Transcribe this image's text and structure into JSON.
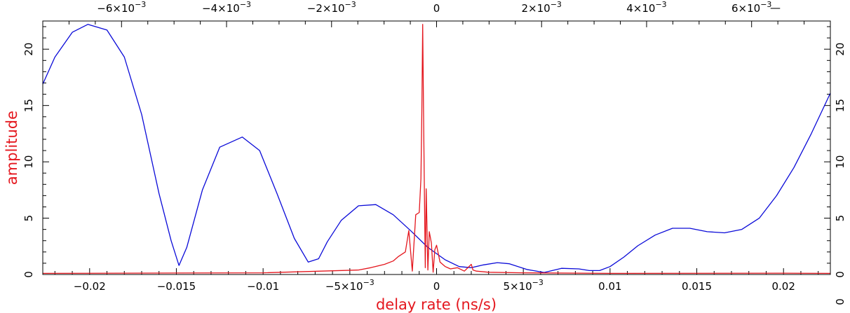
{
  "chart_data": {
    "type": "line",
    "title": "",
    "xlabel": "delay rate (ns/s)",
    "ylabel": "amplitude",
    "xlim": [
      -0.0227,
      0.0227
    ],
    "ylim": [
      0,
      22.5
    ],
    "top_xlim": [
      -0.0075,
      0.0075
    ],
    "colors": {
      "red": "#e4161d",
      "blue": "#0a0ad8",
      "axes": "#000000"
    },
    "bottom_ticks": [
      {
        "value": -0.02,
        "label": "−0.02"
      },
      {
        "value": -0.015,
        "label": "−0.015"
      },
      {
        "value": -0.01,
        "label": "−0.01"
      },
      {
        "value": -0.005,
        "label": "−5×10",
        "exp": "−3"
      },
      {
        "value": 0,
        "label": "0"
      },
      {
        "value": 0.005,
        "label": "5×10",
        "exp": "−3"
      },
      {
        "value": 0.01,
        "label": "0.01"
      },
      {
        "value": 0.015,
        "label": "0.015"
      },
      {
        "value": 0.02,
        "label": "0.02"
      }
    ],
    "top_ticks": [
      {
        "value": -0.006,
        "label": "−6×10",
        "exp": "−3"
      },
      {
        "value": -0.004,
        "label": "−4×10",
        "exp": "−3"
      },
      {
        "value": -0.002,
        "label": "−2×10",
        "exp": "−3"
      },
      {
        "value": 0,
        "label": "0"
      },
      {
        "value": 0.002,
        "label": "2×10",
        "exp": "−3"
      },
      {
        "value": 0.004,
        "label": "4×10",
        "exp": "−3"
      },
      {
        "value": 0.006,
        "label": "6×10",
        "exp": "−3"
      }
    ],
    "y_ticks": [
      {
        "value": 0,
        "label": "0"
      },
      {
        "value": 5,
        "label": "5"
      },
      {
        "value": 10,
        "label": "10"
      },
      {
        "value": 15,
        "label": "15"
      },
      {
        "value": 20,
        "label": "20"
      }
    ],
    "series": [
      {
        "color": "#0a0ad8",
        "x": [
          -0.0227,
          -0.022,
          -0.021,
          -0.0201,
          -0.019,
          -0.018,
          -0.017,
          -0.016,
          -0.0153,
          -0.01485,
          -0.0144,
          -0.0135,
          -0.0125,
          -0.0112,
          -0.0102,
          -0.0092,
          -0.0082,
          -0.0074,
          -0.0068,
          -0.0063,
          -0.0055,
          -0.0045,
          -0.0035,
          -0.0025,
          -0.0015,
          -0.0005,
          0.0005,
          0.0013,
          0.002,
          0.0027,
          0.0035,
          0.0042,
          0.0052,
          0.0062,
          0.0072,
          0.0082,
          0.0088,
          0.0094,
          0.01,
          0.0108,
          0.0116,
          0.0126,
          0.0136,
          0.0146,
          0.0156,
          0.0166,
          0.0176,
          0.0186,
          0.0196,
          0.0206,
          0.0216,
          0.0227
        ],
        "y": [
          16.9,
          19.3,
          21.5,
          22.2,
          21.7,
          19.3,
          14.2,
          7.2,
          3.0,
          0.8,
          2.4,
          7.5,
          11.3,
          12.2,
          11.0,
          7.2,
          3.2,
          1.1,
          1.4,
          2.9,
          4.8,
          6.1,
          6.2,
          5.3,
          3.9,
          2.4,
          1.3,
          0.7,
          0.6,
          0.85,
          1.05,
          0.95,
          0.45,
          0.18,
          0.55,
          0.5,
          0.35,
          0.35,
          0.7,
          1.55,
          2.55,
          3.5,
          4.1,
          4.1,
          3.8,
          3.7,
          4.0,
          5.0,
          7.0,
          9.5,
          12.5,
          16.1
        ]
      },
      {
        "color": "#e4161d",
        "x": [
          -0.0227,
          -0.01,
          -0.0045,
          -0.0038,
          -0.003,
          -0.0025,
          -0.0022,
          -0.0018,
          -0.0016,
          -0.0014,
          -0.0012,
          -0.001,
          -0.0009,
          -0.00085,
          -0.0008,
          -0.00075,
          -0.0007,
          -0.00065,
          -0.0006,
          -0.0005,
          -0.00042,
          -0.0003,
          -0.0002,
          -0.0001,
          0,
          0.0002,
          0.0005,
          0.0008,
          0.0012,
          0.0016,
          0.002,
          0.0021,
          0.0023,
          0.003,
          0.005,
          0.01,
          0.02,
          0.0227
        ],
        "y": [
          0.1,
          0.15,
          0.4,
          0.6,
          0.9,
          1.2,
          1.6,
          2.0,
          3.9,
          0.3,
          5.3,
          5.5,
          8.5,
          14.5,
          22.2,
          14.5,
          7.0,
          0.6,
          7.6,
          0.4,
          3.8,
          2.8,
          0.2,
          2.2,
          2.6,
          1.1,
          0.7,
          0.5,
          0.6,
          0.3,
          0.9,
          0.4,
          0.3,
          0.2,
          0.15,
          0.1,
          0.12,
          0.1
        ]
      }
    ]
  }
}
